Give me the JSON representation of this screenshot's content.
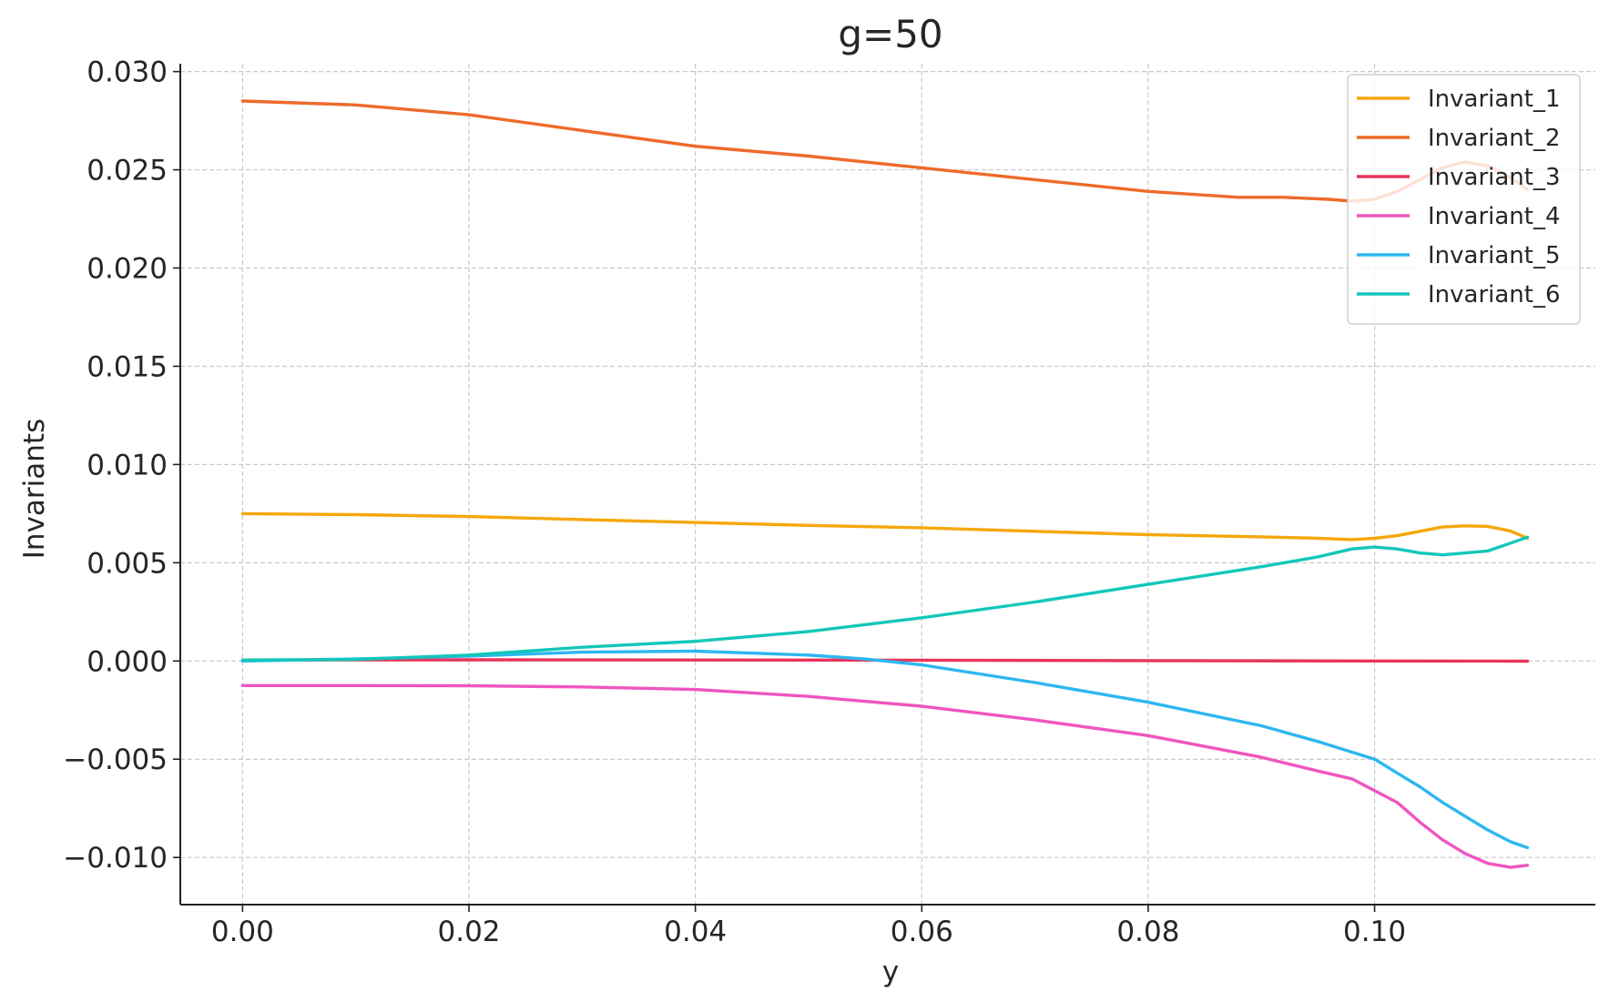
{
  "chart_data": {
    "type": "line",
    "title": "g=50",
    "xlabel": "y",
    "ylabel": "Invariants",
    "xlim": [
      -0.0055,
      0.1195
    ],
    "ylim": [
      -0.0124,
      0.0304
    ],
    "xticks": [
      0.0,
      0.02,
      0.04,
      0.06,
      0.08,
      0.1
    ],
    "xtick_labels": [
      "0.00",
      "0.02",
      "0.04",
      "0.06",
      "0.08",
      "0.10"
    ],
    "yticks": [
      -0.01,
      -0.005,
      0.0,
      0.005,
      0.01,
      0.015,
      0.02,
      0.025,
      0.03
    ],
    "ytick_labels": [
      "−0.010",
      "−0.005",
      "0.000",
      "0.005",
      "0.010",
      "0.015",
      "0.020",
      "0.025",
      "0.030"
    ],
    "grid": true,
    "legend_position": "top-right",
    "series": [
      {
        "name": "Invariant_1",
        "color": "#F5A70A",
        "points": [
          [
            0.0,
            0.0075
          ],
          [
            0.01,
            0.00745
          ],
          [
            0.02,
            0.00735
          ],
          [
            0.03,
            0.0072
          ],
          [
            0.04,
            0.00705
          ],
          [
            0.05,
            0.0069
          ],
          [
            0.06,
            0.00678
          ],
          [
            0.07,
            0.0066
          ],
          [
            0.08,
            0.00643
          ],
          [
            0.09,
            0.00632
          ],
          [
            0.095,
            0.00625
          ],
          [
            0.098,
            0.00618
          ],
          [
            0.1,
            0.00625
          ],
          [
            0.102,
            0.00638
          ],
          [
            0.104,
            0.0066
          ],
          [
            0.106,
            0.00682
          ],
          [
            0.108,
            0.00688
          ],
          [
            0.11,
            0.00685
          ],
          [
            0.112,
            0.00662
          ],
          [
            0.1135,
            0.00625
          ]
        ]
      },
      {
        "name": "Invariant_2",
        "color": "#EE6A2A",
        "points": [
          [
            0.0,
            0.0285
          ],
          [
            0.01,
            0.0283
          ],
          [
            0.02,
            0.0278
          ],
          [
            0.03,
            0.027
          ],
          [
            0.04,
            0.0262
          ],
          [
            0.05,
            0.0257
          ],
          [
            0.06,
            0.0251
          ],
          [
            0.07,
            0.0245
          ],
          [
            0.08,
            0.0239
          ],
          [
            0.088,
            0.0236
          ],
          [
            0.092,
            0.0236
          ],
          [
            0.096,
            0.0235
          ],
          [
            0.098,
            0.0234
          ],
          [
            0.1,
            0.0235
          ],
          [
            0.102,
            0.0239
          ],
          [
            0.104,
            0.0245
          ],
          [
            0.106,
            0.0251
          ],
          [
            0.108,
            0.0254
          ],
          [
            0.11,
            0.0252
          ],
          [
            0.112,
            0.0246
          ],
          [
            0.1135,
            0.024
          ]
        ]
      },
      {
        "name": "Invariant_3",
        "color": "#E8355A",
        "points": [
          [
            0.0,
            5e-05
          ],
          [
            0.02,
            6e-05
          ],
          [
            0.04,
            5e-05
          ],
          [
            0.06,
            4e-05
          ],
          [
            0.08,
            2e-05
          ],
          [
            0.1,
            0.0
          ],
          [
            0.1135,
            -1e-05
          ]
        ]
      },
      {
        "name": "Invariant_4",
        "color": "#F055C0",
        "points": [
          [
            0.0,
            -0.00125
          ],
          [
            0.01,
            -0.00125
          ],
          [
            0.02,
            -0.00126
          ],
          [
            0.03,
            -0.00132
          ],
          [
            0.04,
            -0.00145
          ],
          [
            0.05,
            -0.0018
          ],
          [
            0.06,
            -0.0023
          ],
          [
            0.07,
            -0.003
          ],
          [
            0.08,
            -0.0038
          ],
          [
            0.09,
            -0.0049
          ],
          [
            0.095,
            -0.0056
          ],
          [
            0.098,
            -0.006
          ],
          [
            0.1,
            -0.0066
          ],
          [
            0.102,
            -0.0072
          ],
          [
            0.104,
            -0.0082
          ],
          [
            0.106,
            -0.0091
          ],
          [
            0.108,
            -0.0098
          ],
          [
            0.11,
            -0.0103
          ],
          [
            0.112,
            -0.0105
          ],
          [
            0.1135,
            -0.0104
          ]
        ]
      },
      {
        "name": "Invariant_5",
        "color": "#2DB7F0",
        "points": [
          [
            0.0,
            0.0
          ],
          [
            0.01,
            0.0001
          ],
          [
            0.02,
            0.00025
          ],
          [
            0.03,
            0.00045
          ],
          [
            0.04,
            0.0005
          ],
          [
            0.05,
            0.0003
          ],
          [
            0.055,
            0.0001
          ],
          [
            0.06,
            -0.0002
          ],
          [
            0.07,
            -0.0011
          ],
          [
            0.08,
            -0.0021
          ],
          [
            0.09,
            -0.0033
          ],
          [
            0.095,
            -0.0041
          ],
          [
            0.1,
            -0.005
          ],
          [
            0.102,
            -0.0057
          ],
          [
            0.104,
            -0.0064
          ],
          [
            0.106,
            -0.0072
          ],
          [
            0.108,
            -0.0079
          ],
          [
            0.11,
            -0.0086
          ],
          [
            0.112,
            -0.0092
          ],
          [
            0.1135,
            -0.0095
          ]
        ]
      },
      {
        "name": "Invariant_6",
        "color": "#12C7B9",
        "points": [
          [
            0.0,
            5e-05
          ],
          [
            0.01,
            8e-05
          ],
          [
            0.02,
            0.0003
          ],
          [
            0.03,
            0.0007
          ],
          [
            0.04,
            0.001
          ],
          [
            0.05,
            0.0015
          ],
          [
            0.06,
            0.0022
          ],
          [
            0.07,
            0.003
          ],
          [
            0.08,
            0.0039
          ],
          [
            0.09,
            0.0048
          ],
          [
            0.095,
            0.0053
          ],
          [
            0.098,
            0.0057
          ],
          [
            0.1,
            0.0058
          ],
          [
            0.102,
            0.0057
          ],
          [
            0.104,
            0.0055
          ],
          [
            0.106,
            0.0054
          ],
          [
            0.108,
            0.0055
          ],
          [
            0.11,
            0.0056
          ],
          [
            0.112,
            0.006
          ],
          [
            0.1135,
            0.0063
          ]
        ]
      }
    ]
  }
}
